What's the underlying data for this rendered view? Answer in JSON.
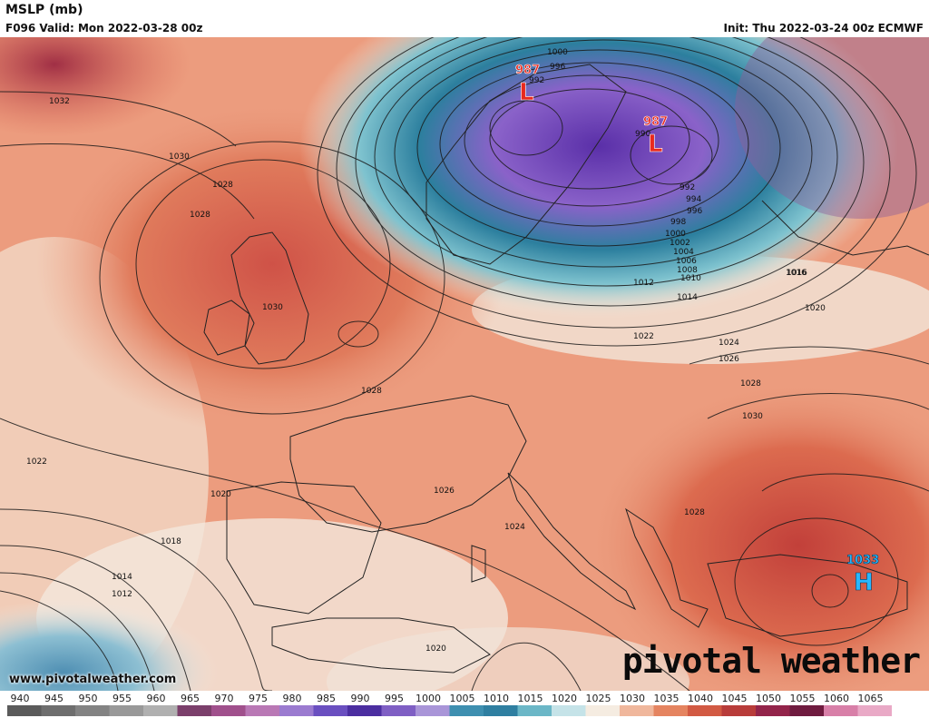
{
  "header": {
    "title": "MSLP (mb)",
    "valid": "F096 Valid: Mon 2022-03-28 00z",
    "init": "Init: Thu 2022-03-24 00z ECMWF"
  },
  "centers": [
    {
      "type": "L",
      "value": "987",
      "color": "#e8291e"
    },
    {
      "type": "L",
      "value": "987",
      "color": "#e8291e"
    },
    {
      "type": "H",
      "value": "1033",
      "color": "#28b7ff"
    }
  ],
  "isobar_labels": [
    "1032",
    "1030",
    "1028",
    "1028",
    "1030",
    "1028",
    "1026",
    "1024",
    "1022",
    "1020",
    "1018",
    "1016",
    "1014",
    "1014",
    "1012",
    "1012",
    "1010",
    "1008",
    "1006",
    "1004",
    "1002",
    "1000",
    "998",
    "996",
    "994",
    "992",
    "1000",
    "996",
    "992",
    "990",
    "1016",
    "1020",
    "1022",
    "1024",
    "1026",
    "1028",
    "1030",
    "1028",
    "1020"
  ],
  "legend": {
    "ticks": [
      "940",
      "945",
      "950",
      "955",
      "960",
      "965",
      "970",
      "975",
      "980",
      "985",
      "990",
      "995",
      "1000",
      "1005",
      "1010",
      "1015",
      "1020",
      "1025",
      "1030",
      "1035",
      "1040",
      "1045",
      "1050",
      "1055",
      "1060",
      "1065"
    ],
    "colors": [
      "#5b5b5b",
      "#6e6e6e",
      "#838383",
      "#999999",
      "#b0b0b0",
      "#7b3f6b",
      "#a0508c",
      "#b978b5",
      "#9b7bd0",
      "#6a4fc0",
      "#4b2ea0",
      "#7f5fc4",
      "#a995d8",
      "#3e8fb0",
      "#2f7fa1",
      "#6bb7c7",
      "#c5e3e8",
      "#f5ece1",
      "#f0b79c",
      "#e58460",
      "#d25a43",
      "#b83c3a",
      "#93244a",
      "#6f1b3f",
      "#d87fa8",
      "#e9a9c6"
    ]
  },
  "footer": {
    "site": "www.pivotalweather.com",
    "logo": "pivotal weather"
  }
}
